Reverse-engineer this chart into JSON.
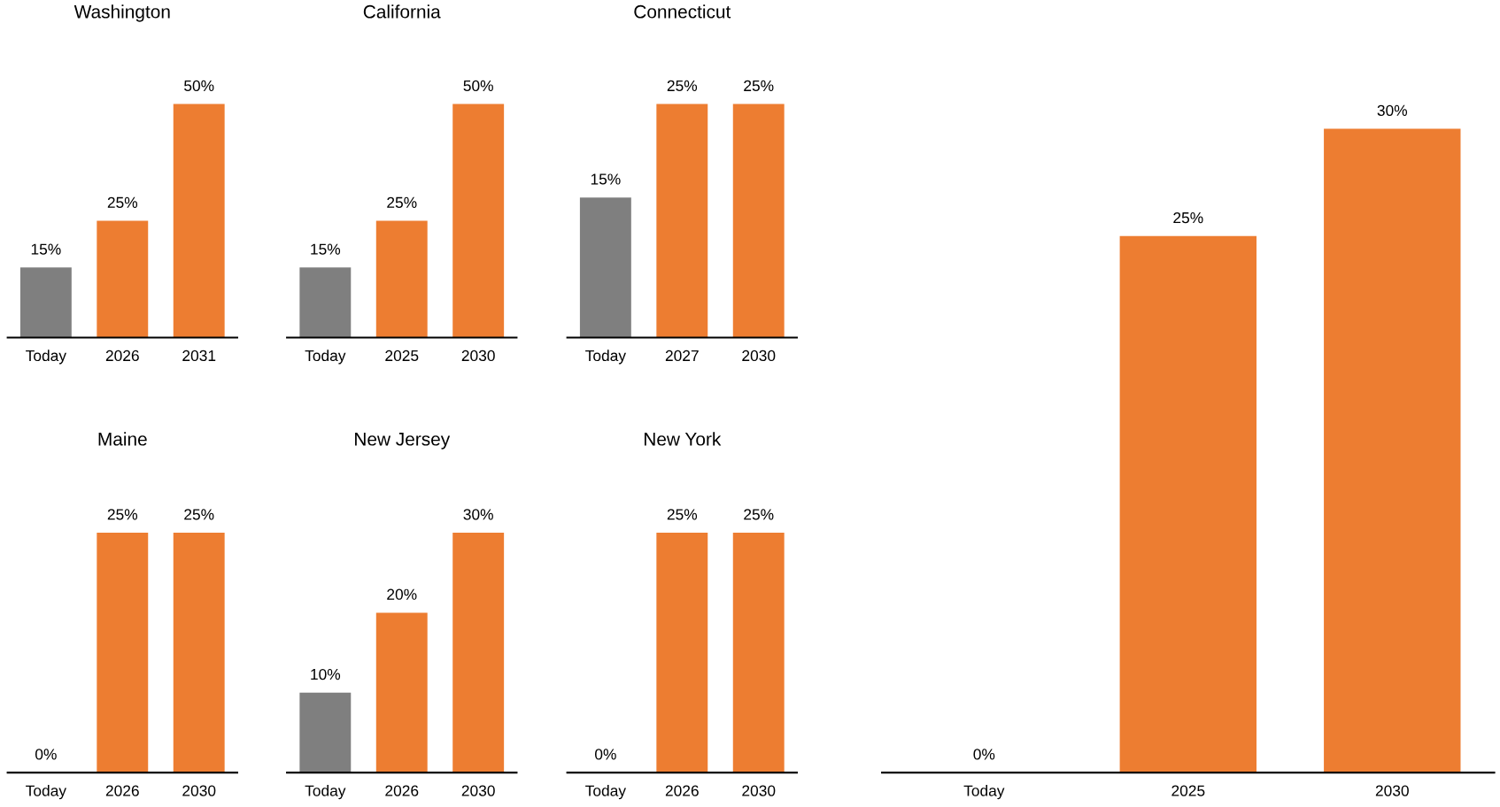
{
  "chart_data": [
    {
      "type": "bar",
      "title": "Washington",
      "categories": [
        "Today",
        "2026",
        "2031"
      ],
      "values": [
        15,
        25,
        50
      ],
      "colors": [
        "#7f7f7f",
        "#ed7d31",
        "#ed7d31"
      ],
      "value_labels": [
        "15%",
        "25%",
        "50%"
      ],
      "tick_labels": "x",
      "grid": false
    },
    {
      "type": "bar",
      "title": "California",
      "categories": [
        "Today",
        "2025",
        "2030"
      ],
      "values": [
        15,
        25,
        50
      ],
      "colors": [
        "#7f7f7f",
        "#ed7d31",
        "#ed7d31"
      ],
      "value_labels": [
        "15%",
        "25%",
        "50%"
      ],
      "tick_labels": "x",
      "grid": false
    },
    {
      "type": "bar",
      "title": "Connecticut",
      "categories": [
        "Today",
        "2027",
        "2030"
      ],
      "values": [
        15,
        25,
        25
      ],
      "colors": [
        "#7f7f7f",
        "#ed7d31",
        "#ed7d31"
      ],
      "value_labels": [
        "15%",
        "25%",
        "25%"
      ],
      "tick_labels": "x",
      "grid": false
    },
    {
      "type": "bar",
      "title": "Maine",
      "categories": [
        "Today",
        "2026",
        "2030"
      ],
      "values": [
        0,
        25,
        25
      ],
      "colors": [
        "#7f7f7f",
        "#ed7d31",
        "#ed7d31"
      ],
      "value_labels": [
        "0%",
        "25%",
        "25%"
      ],
      "tick_labels": "x",
      "grid": false
    },
    {
      "type": "bar",
      "title": "New Jersey",
      "categories": [
        "Today",
        "2026",
        "2030"
      ],
      "values": [
        10,
        20,
        30
      ],
      "colors": [
        "#7f7f7f",
        "#ed7d31",
        "#ed7d31"
      ],
      "value_labels": [
        "10%",
        "20%",
        "30%"
      ],
      "tick_labels": "x",
      "grid": false
    },
    {
      "type": "bar",
      "title": "New York",
      "categories": [
        "Today",
        "2026",
        "2030"
      ],
      "values": [
        0,
        25,
        25
      ],
      "colors": [
        "#7f7f7f",
        "#ed7d31",
        "#ed7d31"
      ],
      "value_labels": [
        "0%",
        "25%",
        "25%"
      ],
      "tick_labels": "x",
      "grid": false
    },
    {
      "type": "bar",
      "categories": [
        "Today",
        "2025",
        "2030"
      ],
      "values": [
        0,
        25,
        30
      ],
      "colors": [
        "#7f7f7f",
        "#ed7d31",
        "#ed7d31"
      ],
      "value_labels": [
        "0%",
        "25%",
        "30%"
      ],
      "tick_labels": "x",
      "grid": false
    }
  ]
}
